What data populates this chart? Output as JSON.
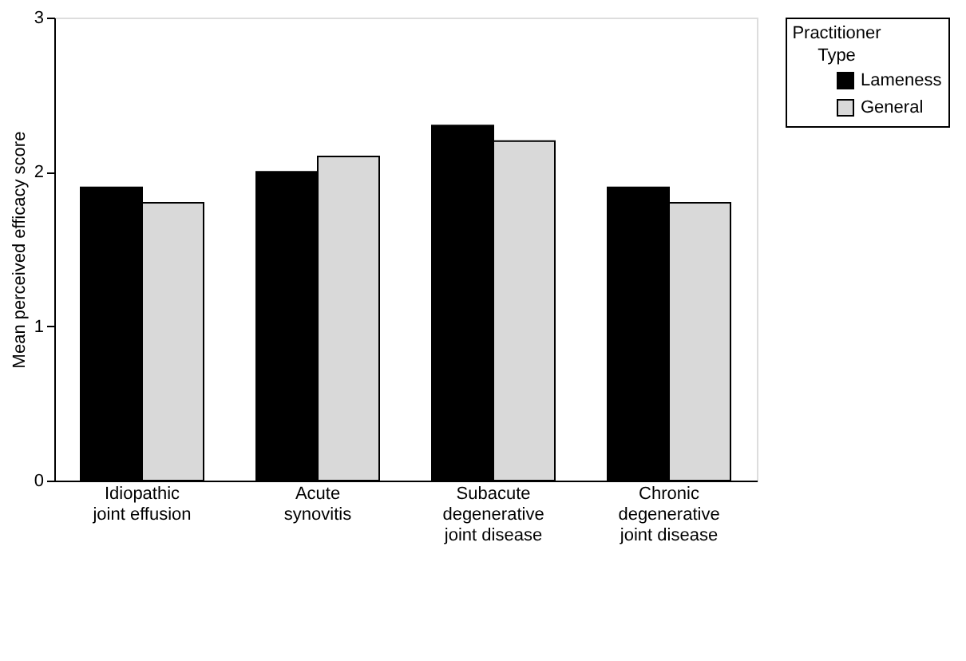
{
  "chart_data": {
    "type": "bar",
    "ylabel": "Mean perceived efficacy score",
    "legend_title": "Practitioner\nType",
    "categories": [
      "Idiopathic\njoint effusion",
      "Acute\nsynovitis",
      "Subacute\ndegenerative\njoint disease",
      "Chronic\ndegenerative\njoint disease"
    ],
    "series": [
      {
        "name": "Lameness",
        "color": "#000000",
        "values": [
          1.9,
          2.0,
          2.3,
          1.9
        ]
      },
      {
        "name": "General",
        "color": "#d9d9d9",
        "values": [
          1.8,
          2.1,
          2.2,
          1.8
        ]
      }
    ],
    "ylim": [
      0,
      3
    ],
    "yticks": [
      0,
      1,
      2,
      3
    ],
    "grid": false,
    "legend": "right"
  }
}
